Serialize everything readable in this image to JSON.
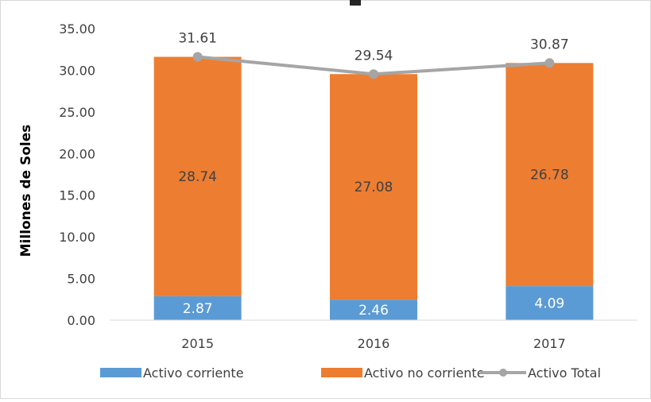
{
  "chart_data": {
    "type": "bar",
    "stacked": true,
    "categories": [
      "2015",
      "2016",
      "2017"
    ],
    "series": [
      {
        "name": "Activo corriente",
        "kind": "bar",
        "color": "#5B9BD5",
        "values": [
          2.87,
          2.46,
          4.09
        ],
        "labels": [
          "2.87",
          "2.46",
          "4.09"
        ]
      },
      {
        "name": "Activo no corriente",
        "kind": "bar",
        "color": "#ED7D31",
        "values": [
          28.74,
          27.08,
          26.78
        ],
        "labels": [
          "28.74",
          "27.08",
          "26.78"
        ]
      },
      {
        "name": "Activo Total",
        "kind": "line",
        "color": "#A5A5A5",
        "values": [
          31.61,
          29.54,
          30.87
        ],
        "labels": [
          "31.61",
          "29.54",
          "30.87"
        ]
      }
    ],
    "ylabel": "Millones de Soles",
    "xlabel": "",
    "ylim": [
      0,
      35
    ],
    "yticks": [
      "0.00",
      "5.00",
      "10.00",
      "15.00",
      "20.00",
      "25.00",
      "30.00",
      "35.00"
    ],
    "grid": false,
    "legend": "bottom"
  }
}
